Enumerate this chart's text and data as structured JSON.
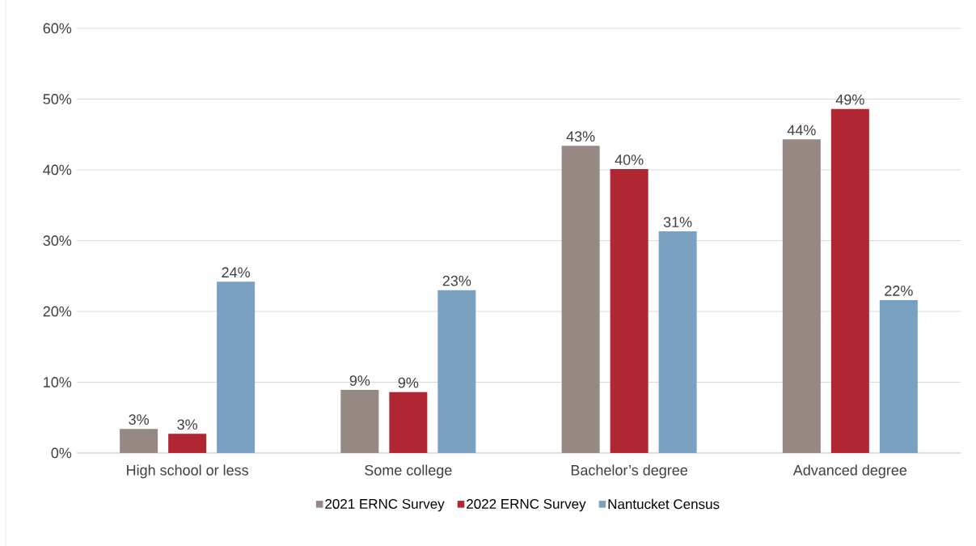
{
  "chart_data": {
    "type": "bar",
    "categories": [
      "High school or less",
      "Some college",
      "Bachelor’s degree",
      "Advanced degree"
    ],
    "series": [
      {
        "name": "2021 ERNC Survey",
        "color": "#968882",
        "values": [
          3.4,
          8.9,
          43.4,
          44.3
        ],
        "value_labels": [
          "3%",
          "9%",
          "43%",
          "44%"
        ]
      },
      {
        "name": "2022 ERNC Survey",
        "color": "#b02733",
        "values": [
          2.7,
          8.6,
          40.1,
          48.6
        ],
        "value_labels": [
          "3%",
          "9%",
          "40%",
          "49%"
        ]
      },
      {
        "name": "Nantucket Census",
        "color": "#7aa1c2",
        "values": [
          24.2,
          23.0,
          31.3,
          21.6
        ],
        "value_labels": [
          "24%",
          "23%",
          "31%",
          "22%"
        ]
      }
    ],
    "ylim": [
      0,
      60
    ],
    "yticks": [
      {
        "value": 0,
        "label": "0%"
      },
      {
        "value": 10,
        "label": "10%"
      },
      {
        "value": 20,
        "label": "20%"
      },
      {
        "value": 30,
        "label": "30%"
      },
      {
        "value": 40,
        "label": "40%"
      },
      {
        "value": 50,
        "label": "50%"
      },
      {
        "value": 60,
        "label": "60%"
      }
    ],
    "grid": "y",
    "legend": "bottom"
  }
}
